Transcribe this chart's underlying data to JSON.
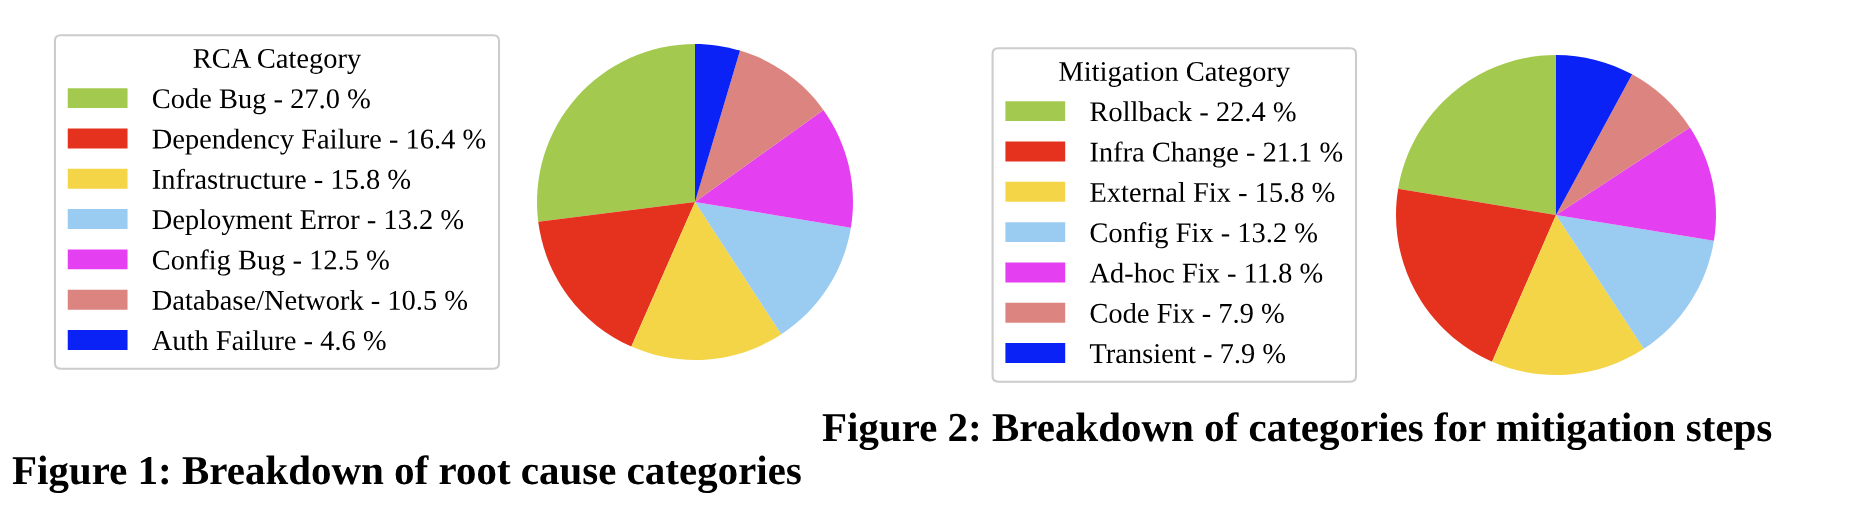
{
  "chart_data": [
    {
      "type": "pie",
      "title": "Figure 1: Breakdown of root cause categories",
      "legend_title": "RCA Category",
      "legend": "left",
      "categories": [
        "Code Bug - 27.0 %",
        "Dependency Failure - 16.4 %",
        "Infrastructure - 15.8 %",
        "Deployment Error - 13.2 %",
        "Config Bug - 12.5 %",
        "Database/Network - 10.5 %",
        "Auth Failure - 4.6 %"
      ],
      "values": [
        27.0,
        16.4,
        15.8,
        13.2,
        12.5,
        10.5,
        4.6
      ],
      "colors": [
        "#a4c94f",
        "#e5321f",
        "#f4d548",
        "#9acbf0",
        "#e43ff0",
        "#dc8580",
        "#0a22f5"
      ]
    },
    {
      "type": "pie",
      "title": "Figure 2: Breakdown of categories for mitigation steps",
      "legend_title": "Mitigation Category",
      "legend": "left",
      "categories": [
        "Rollback - 22.4 %",
        "Infra Change - 21.1 %",
        "External Fix - 15.8 %",
        "Config Fix - 13.2 %",
        "Ad-hoc Fix - 11.8 %",
        "Code Fix - 7.9 %",
        "Transient - 7.9 %"
      ],
      "values": [
        22.4,
        21.1,
        15.8,
        13.2,
        11.8,
        7.9,
        7.9
      ],
      "colors": [
        "#a4c94f",
        "#e5321f",
        "#f4d548",
        "#9acbf0",
        "#e43ff0",
        "#dc8580",
        "#0a22f5"
      ]
    }
  ]
}
